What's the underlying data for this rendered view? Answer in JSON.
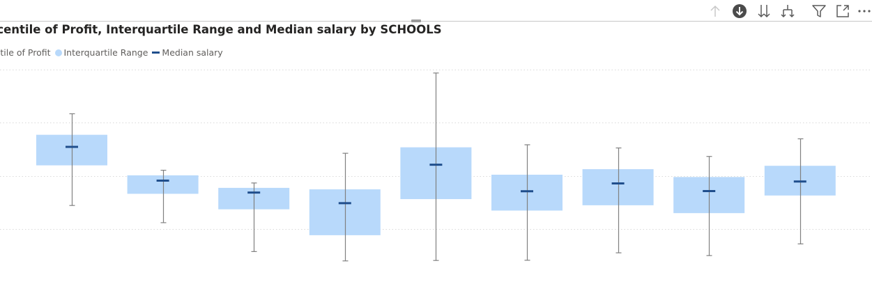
{
  "toolbar": {
    "icons": [
      "arrow-up-icon",
      "drill-down-icon",
      "expand-all-down-icon",
      "drill-hierarchy-icon",
      "filter-icon",
      "focus-mode-icon",
      "more-options-icon"
    ]
  },
  "colors": {
    "box": "#b8d9fb",
    "median": "#1f4e8c",
    "whisker": "#808080",
    "gridline": "#d9d9d9",
    "drill_active": "#4b4b4b"
  },
  "chart_data": {
    "type": "box",
    "title": "ercentile of Profit, Interquartile Range and Median salary by SCHOOLS",
    "legend": [
      "rcentile of Profit",
      "Interquartile Range",
      "Median salary"
    ],
    "legend_placement": "top-left",
    "grid": true,
    "ylim": [
      0,
      100
    ],
    "categories": [
      "",
      "",
      "",
      "",
      "",
      "",
      "",
      "",
      ""
    ],
    "series": [
      {
        "name": "rcentile of Profit",
        "low": [
          36.0,
          27.9,
          14.3,
          9.9,
          10.1,
          10.2,
          13.7,
          12.4,
          17.9
        ],
        "high": [
          79.2,
          52.6,
          46.6,
          60.6,
          98.4,
          64.6,
          63.1,
          59.1,
          67.4
        ]
      },
      {
        "name": "Interquartile Range",
        "q1": [
          54.9,
          41.5,
          34.2,
          22.0,
          39.0,
          33.6,
          36.1,
          32.4,
          40.7
        ],
        "q3": [
          69.3,
          50.2,
          44.3,
          43.6,
          63.4,
          50.5,
          53.1,
          49.4,
          54.7
        ]
      },
      {
        "name": "Median salary",
        "values": [
          63.6,
          47.7,
          42.1,
          37.1,
          55.2,
          42.7,
          46.4,
          42.8,
          47.3
        ]
      }
    ]
  }
}
